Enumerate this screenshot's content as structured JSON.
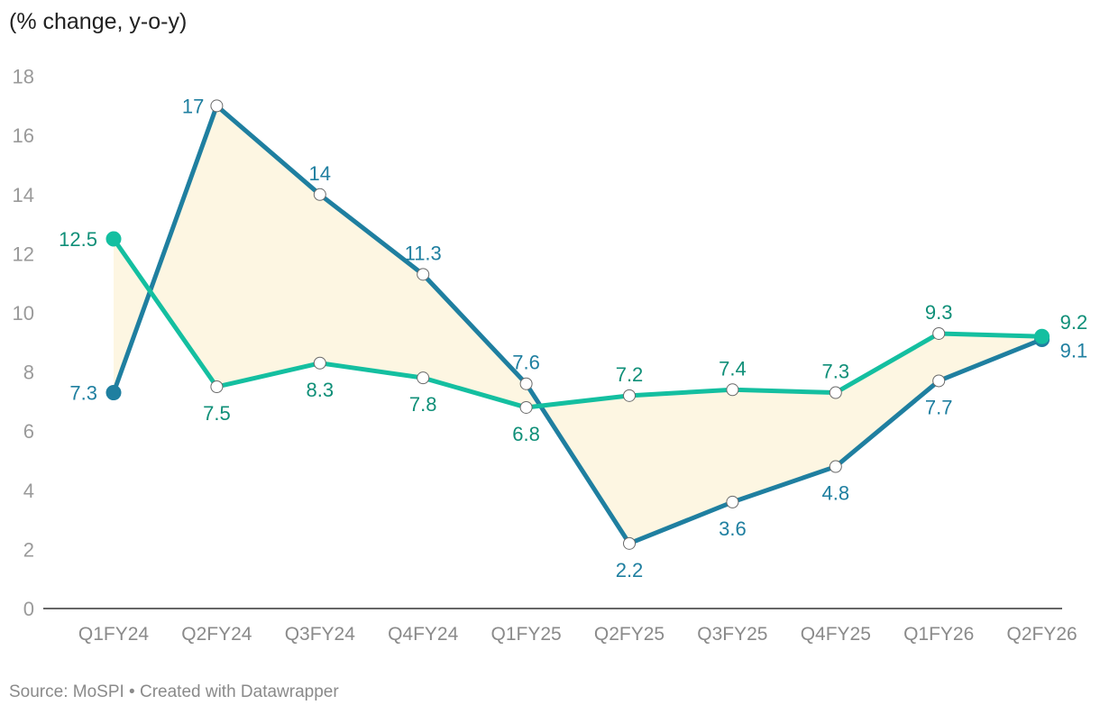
{
  "chart_data": {
    "type": "line",
    "subtitle": "(% change, y-o-y)",
    "categories": [
      "Q1FY24",
      "Q2FY24",
      "Q3FY24",
      "Q4FY24",
      "Q1FY25",
      "Q2FY25",
      "Q3FY25",
      "Q4FY25",
      "Q1FY26",
      "Q2FY26"
    ],
    "series": [
      {
        "color": "#1f7fa0",
        "label_color": "#1f7fa0",
        "values": [
          7.3,
          17,
          14,
          11.3,
          7.6,
          2.2,
          3.6,
          4.8,
          7.7,
          9.1
        ]
      },
      {
        "color": "#14bfa0",
        "label_color": "#0f8f78",
        "values": [
          12.5,
          7.5,
          8.3,
          7.8,
          6.8,
          7.2,
          7.4,
          7.3,
          9.3,
          9.2
        ]
      }
    ],
    "y_ticks": [
      0,
      2,
      4,
      6,
      8,
      10,
      12,
      14,
      16,
      18
    ],
    "ylim": [
      0,
      18
    ],
    "grid": false,
    "area_between_series_color": "#fdf6e2",
    "source": "Source: MoSPI • Created with Datawrapper"
  }
}
